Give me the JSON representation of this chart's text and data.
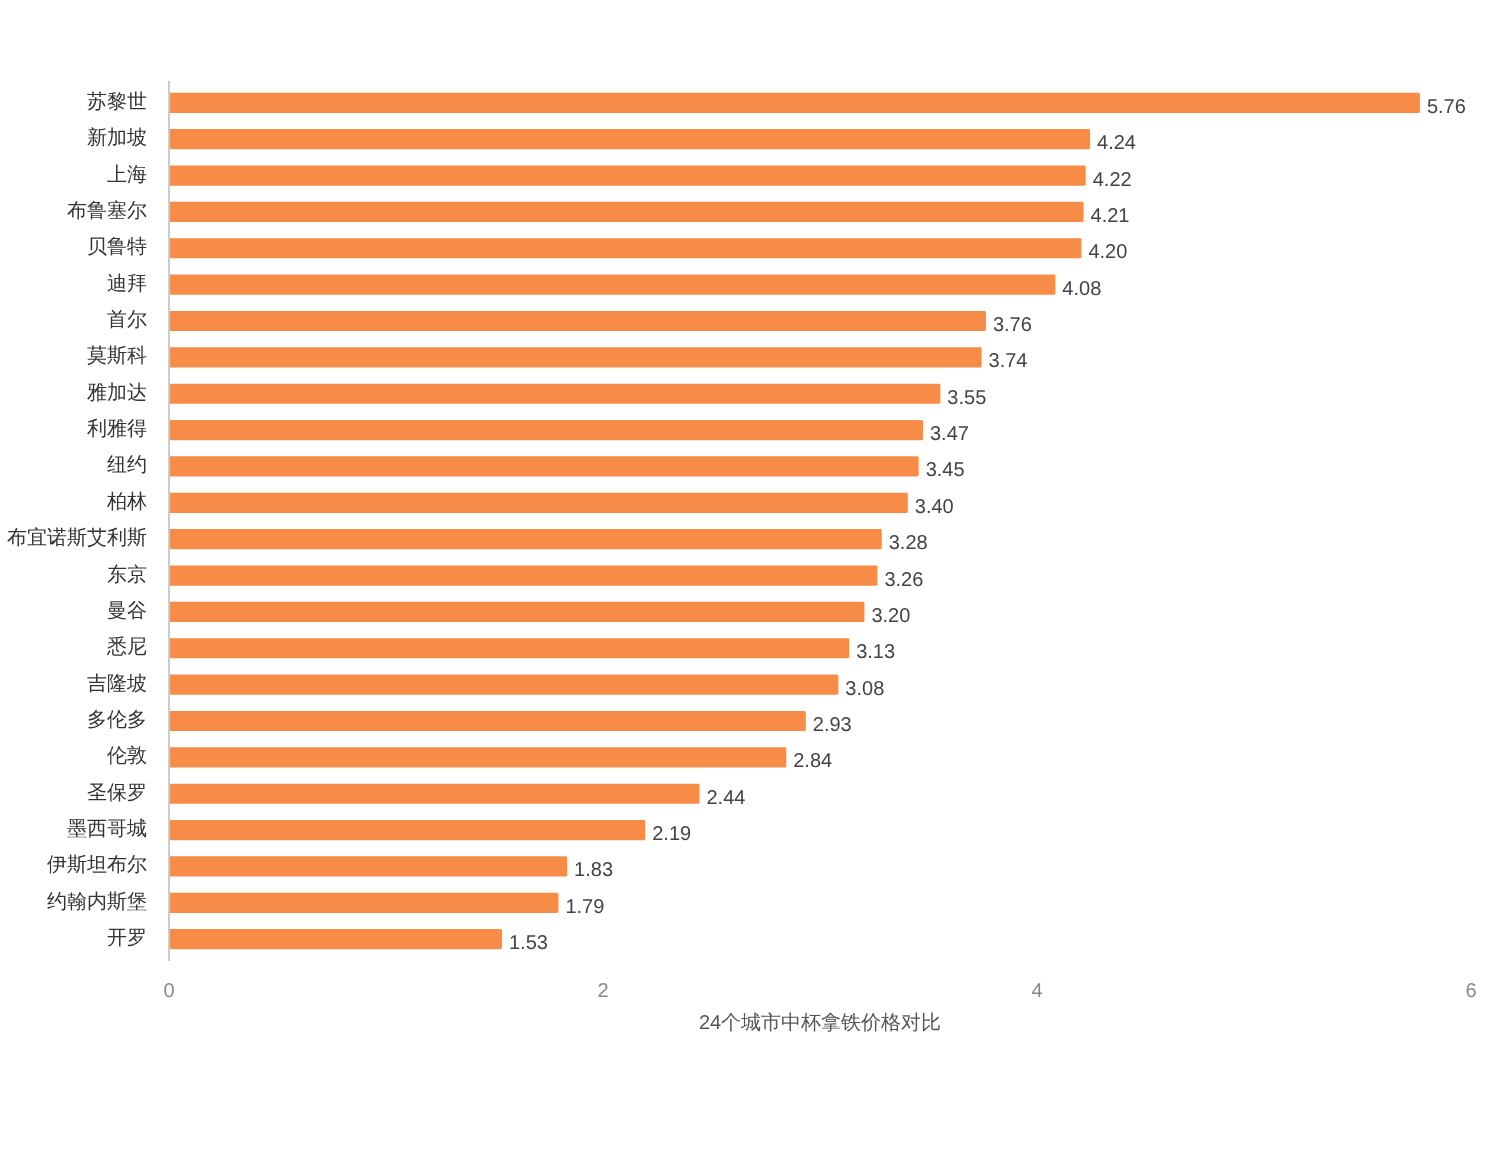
{
  "chart_data": {
    "type": "bar",
    "orientation": "horizontal",
    "xlabel": "24个城市中杯拿铁价格对比",
    "categories": [
      "苏黎世",
      "新加坡",
      "上海",
      "布鲁塞尔",
      "贝鲁特",
      "迪拜",
      "首尔",
      "莫斯科",
      "雅加达",
      "利雅得",
      "纽约",
      "柏林",
      "布宜诺斯艾利斯",
      "东京",
      "曼谷",
      "悉尼",
      "吉隆坡",
      "多伦多",
      "伦敦",
      "圣保罗",
      "墨西哥城",
      "伊斯坦布尔",
      "约翰内斯堡",
      "开罗"
    ],
    "values": [
      5.76,
      4.24,
      4.22,
      4.21,
      4.2,
      4.08,
      3.76,
      3.74,
      3.55,
      3.47,
      3.45,
      3.4,
      3.28,
      3.26,
      3.2,
      3.13,
      3.08,
      2.93,
      2.84,
      2.44,
      2.19,
      1.83,
      1.79,
      1.53
    ],
    "value_labels": [
      "5.76",
      "4.24",
      "4.22",
      "4.21",
      "4.20",
      "4.08",
      "3.76",
      "3.74",
      "3.55",
      "3.47",
      "3.45",
      "3.40",
      "3.28",
      "3.26",
      "3.20",
      "3.13",
      "3.08",
      "2.93",
      "2.84",
      "2.44",
      "2.19",
      "1.83",
      "1.79",
      "1.53"
    ],
    "color": "#f68c47",
    "xlim": [
      0,
      6
    ],
    "xticks": [
      0,
      2,
      4,
      6
    ],
    "grid": false
  }
}
